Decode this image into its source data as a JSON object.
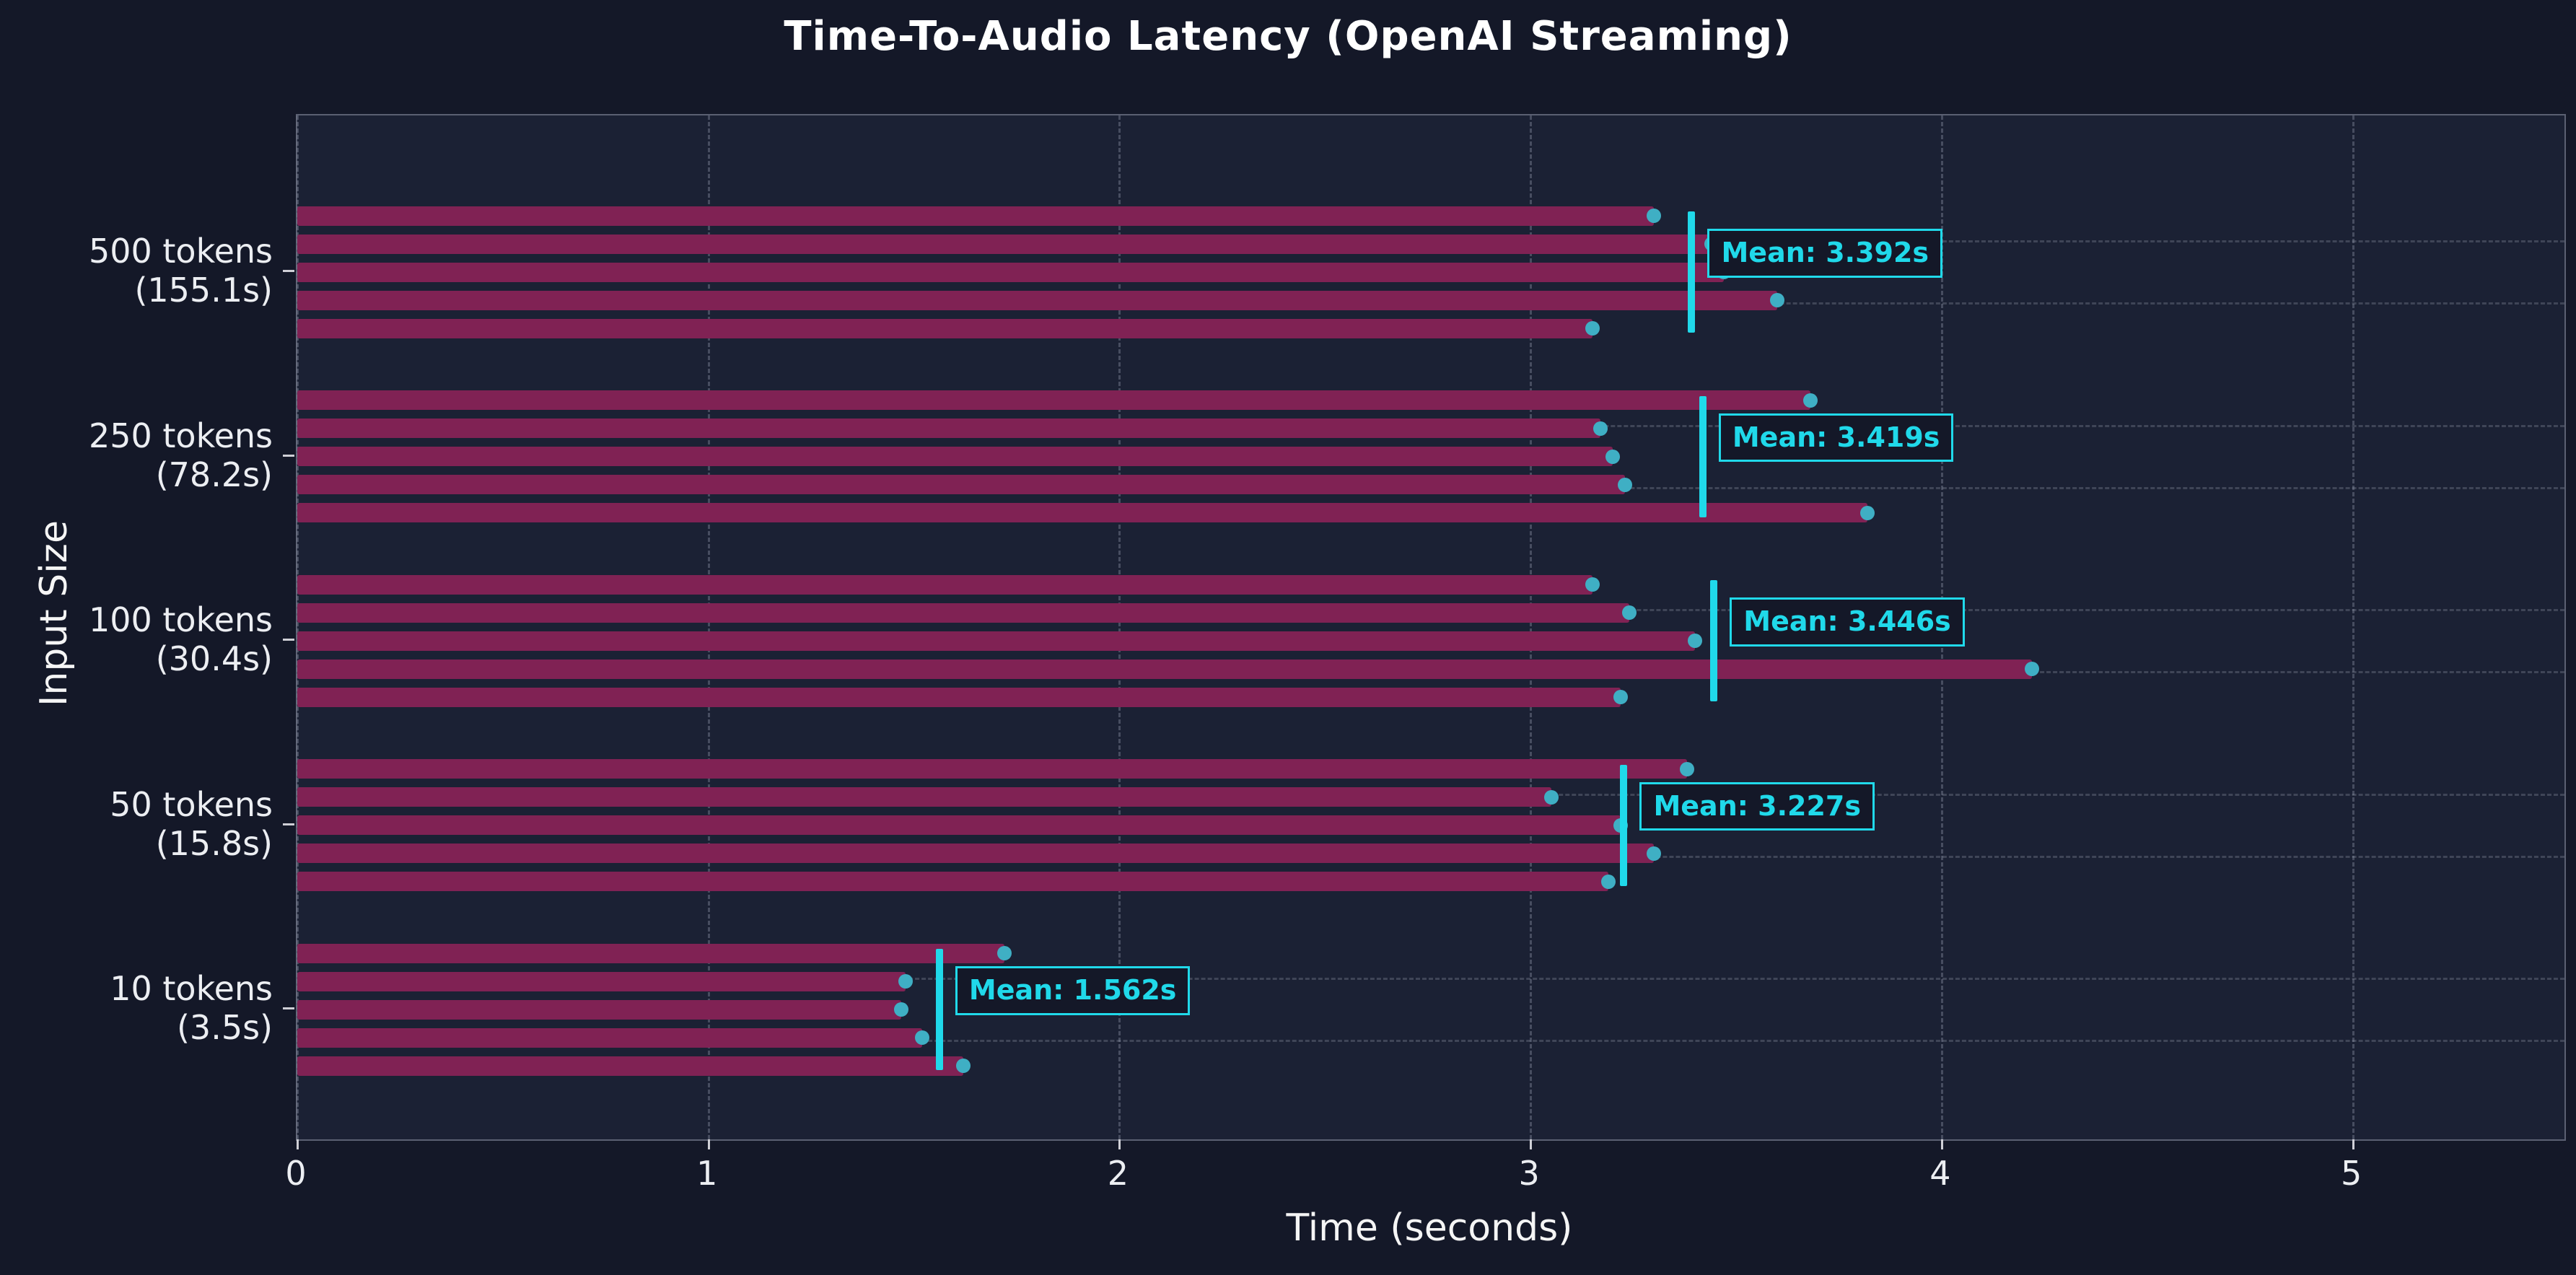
{
  "title": "Time-To-Audio Latency (OpenAI Streaming)",
  "axes": {
    "xlabel": "Time (seconds)",
    "ylabel": "Input Size"
  },
  "colors": {
    "background": "#141828",
    "plot_background": "#1b2134",
    "bar": "#802254",
    "dot": "#3fafc4",
    "mean_accent": "#20d9ea",
    "grid": "#a5acbe",
    "text": "#f2f2f2"
  },
  "chart_data": {
    "type": "bar",
    "orientation": "horizontal",
    "title": "Time-To-Audio Latency (OpenAI Streaming)",
    "xlabel": "Time (seconds)",
    "ylabel": "Input Size",
    "xlim": [
      0,
      5.515
    ],
    "x_ticks": [
      0,
      1,
      2,
      3,
      4,
      5
    ],
    "grid": true,
    "legend": false,
    "groups": [
      {
        "label_line1": "500 tokens",
        "label_line2": "(155.1s)",
        "runs": [
          3.3,
          3.44,
          3.47,
          3.6,
          3.15
        ],
        "mean": 3.392,
        "mean_label": "Mean: 3.392s"
      },
      {
        "label_line1": "250 tokens",
        "label_line2": "(78.2s)",
        "runs": [
          3.68,
          3.17,
          3.2,
          3.23,
          3.82
        ],
        "mean": 3.419,
        "mean_label": "Mean: 3.419s"
      },
      {
        "label_line1": "100 tokens",
        "label_line2": "(30.4s)",
        "runs": [
          3.15,
          3.24,
          3.4,
          4.22,
          3.22
        ],
        "mean": 3.446,
        "mean_label": "Mean: 3.446s"
      },
      {
        "label_line1": "50 tokens",
        "label_line2": "(15.8s)",
        "runs": [
          3.38,
          3.05,
          3.22,
          3.3,
          3.19
        ],
        "mean": 3.227,
        "mean_label": "Mean: 3.227s"
      },
      {
        "label_line1": "10 tokens",
        "label_line2": "(3.5s)",
        "runs": [
          1.72,
          1.48,
          1.47,
          1.52,
          1.62
        ],
        "mean": 1.562,
        "mean_label": "Mean: 1.562s"
      }
    ]
  }
}
